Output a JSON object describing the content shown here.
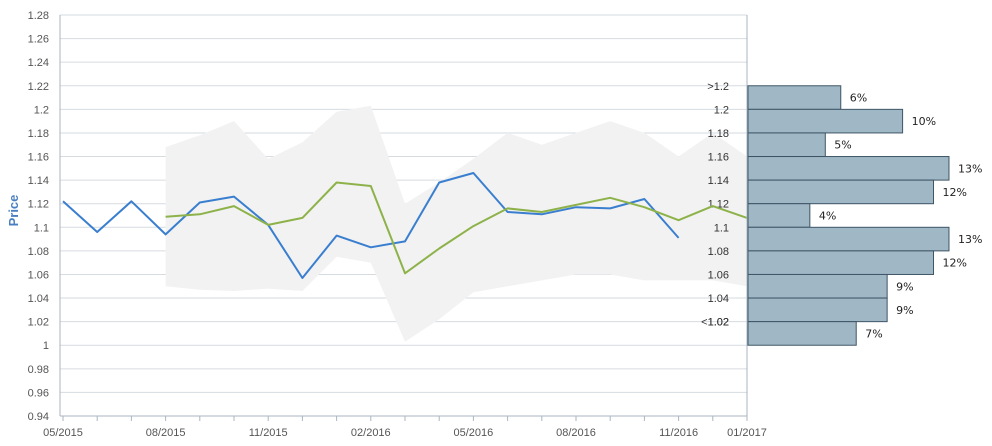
{
  "chart_data": {
    "type": "line",
    "ylabel": "Price",
    "ylim": [
      0.94,
      1.28
    ],
    "yticks": [
      "0.94",
      "0.96",
      "0.98",
      "1",
      "1.02",
      "1.04",
      "1.06",
      "1.08",
      "1.1",
      "1.12",
      "1.14",
      "1.16",
      "1.18",
      "1.2",
      "1.22",
      "1.24",
      "1.26",
      "1.28"
    ],
    "xlim": [
      "2015-05",
      "2017-01"
    ],
    "xticks": [
      {
        "label": "05/2015",
        "month": "2015-05"
      },
      {
        "label": "08/2015",
        "month": "2015-08"
      },
      {
        "label": "11/2015",
        "month": "2015-11"
      },
      {
        "label": "02/2016",
        "month": "2016-02"
      },
      {
        "label": "05/2016",
        "month": "2016-05"
      },
      {
        "label": "08/2016",
        "month": "2016-08"
      },
      {
        "label": "11/2016",
        "month": "2016-11"
      },
      {
        "label": "01/2017",
        "month": "2017-01"
      }
    ],
    "grid": true,
    "colors": {
      "blue": "#3a7fcf",
      "green": "#8db24a",
      "band": "#f2f2f2",
      "bar": "#a0b7c5",
      "bar_border": "#3d5566",
      "axis": "#a9b6c2",
      "label": "#4a7fc1"
    },
    "band": {
      "x": [
        "2015-08",
        "2015-09",
        "2015-10",
        "2015-11",
        "2015-12",
        "2016-01",
        "2016-02",
        "2016-03",
        "2016-04",
        "2016-05",
        "2016-06",
        "2016-07",
        "2016-08",
        "2016-09",
        "2016-10",
        "2016-11",
        "2016-12",
        "2017-01"
      ],
      "upper": [
        1.168,
        1.178,
        1.19,
        1.158,
        1.172,
        1.198,
        1.203,
        1.12,
        1.138,
        1.158,
        1.18,
        1.17,
        1.18,
        1.19,
        1.18,
        1.16,
        1.18,
        1.16
      ],
      "lower": [
        1.05,
        1.047,
        1.046,
        1.048,
        1.046,
        1.075,
        1.07,
        1.003,
        1.022,
        1.045,
        1.05,
        1.055,
        1.06,
        1.06,
        1.055,
        1.055,
        1.055,
        1.05
      ]
    },
    "series": [
      {
        "color": "blue",
        "x": [
          "2015-05",
          "2015-06",
          "2015-07",
          "2015-08",
          "2015-09",
          "2015-10",
          "2015-11",
          "2015-12",
          "2016-01",
          "2016-02",
          "2016-03",
          "2016-04",
          "2016-05",
          "2016-06",
          "2016-07",
          "2016-08",
          "2016-09",
          "2016-10",
          "2016-11"
        ],
        "values": [
          1.122,
          1.096,
          1.122,
          1.094,
          1.121,
          1.126,
          1.102,
          1.057,
          1.093,
          1.083,
          1.088,
          1.138,
          1.146,
          1.113,
          1.111,
          1.117,
          1.116,
          1.124,
          1.091
        ]
      },
      {
        "color": "green",
        "x": [
          "2015-08",
          "2015-09",
          "2015-10",
          "2015-11",
          "2015-12",
          "2016-01",
          "2016-02",
          "2016-03",
          "2016-04",
          "2016-05",
          "2016-06",
          "2016-07",
          "2016-08",
          "2016-09",
          "2016-10",
          "2016-11",
          "2016-12",
          "2017-01"
        ],
        "values": [
          1.109,
          1.111,
          1.118,
          1.102,
          1.108,
          1.138,
          1.135,
          1.061,
          1.082,
          1.101,
          1.116,
          1.113,
          1.119,
          1.125,
          1.117,
          1.106,
          1.118,
          1.108
        ]
      }
    ],
    "histogram": [
      {
        "label": ">1.2",
        "value": "6%",
        "pct": 6
      },
      {
        "label": "1.2",
        "value": "10%",
        "pct": 10
      },
      {
        "label": "1.18",
        "value": "5%",
        "pct": 5
      },
      {
        "label": "1.16",
        "value": "13%",
        "pct": 13
      },
      {
        "label": "1.14",
        "value": "12%",
        "pct": 12
      },
      {
        "label": "1.12",
        "value": "4%",
        "pct": 4
      },
      {
        "label": "1.1",
        "value": "13%",
        "pct": 13
      },
      {
        "label": "1.08",
        "value": "12%",
        "pct": 12
      },
      {
        "label": "1.06",
        "value": "9%",
        "pct": 9
      },
      {
        "label": "1.04",
        "value": "9%",
        "pct": 9
      },
      {
        "label": "1.02",
        "value": "7%",
        "pct": 7
      },
      {
        "label": "<1.02",
        "value": "",
        "pct": 0
      }
    ]
  }
}
